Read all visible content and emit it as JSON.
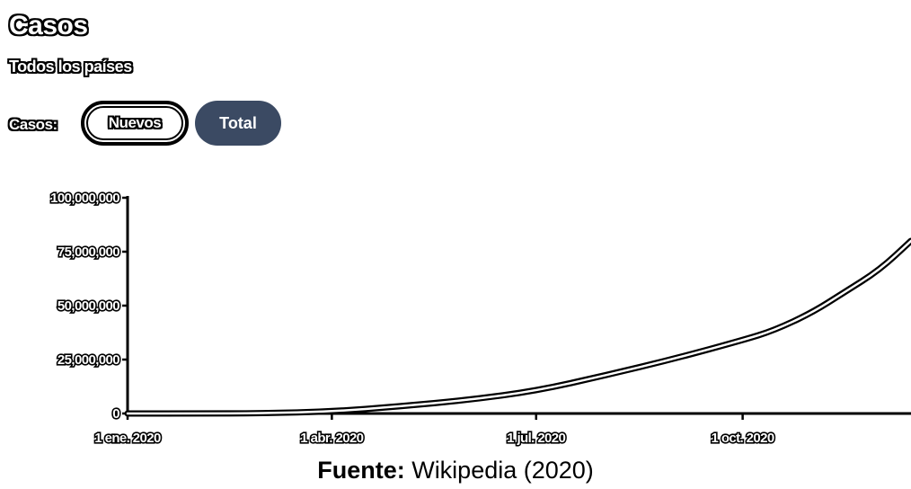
{
  "header": {
    "title": "Casos",
    "subtitle": "Todos los países",
    "mode_label": "Casos:",
    "buttons": {
      "new": "Nuevos",
      "total": "Total"
    }
  },
  "colors": {
    "active_button": "#3b4a63",
    "line": "#000000"
  },
  "chart_data": {
    "type": "line",
    "title": "Casos",
    "subtitle": "Todos los países",
    "xlabel": "",
    "ylabel": "",
    "xlim": [
      "2020-01-01",
      "2020-12-15"
    ],
    "ylim": [
      0,
      100000000
    ],
    "x_ticks": [
      {
        "date": "2020-01-01",
        "label": "1 ene. 2020"
      },
      {
        "date": "2020-04-01",
        "label": "1 abr. 2020"
      },
      {
        "date": "2020-07-01",
        "label": "1 jul. 2020"
      },
      {
        "date": "2020-10-01",
        "label": "1 oct. 2020"
      }
    ],
    "y_ticks": [
      {
        "value": 0,
        "label": "0"
      },
      {
        "value": 25000000,
        "label": "25,000,000"
      },
      {
        "value": 50000000,
        "label": "50,000,000"
      },
      {
        "value": 75000000,
        "label": "75,000,000"
      },
      {
        "value": 100000000,
        "label": "100,000,000"
      }
    ],
    "grid": false,
    "legend": "none",
    "series": [
      {
        "points": [
          [
            "2020-01-01",
            0
          ],
          [
            "2020-02-01",
            10000
          ],
          [
            "2020-03-01",
            90000
          ],
          [
            "2020-04-01",
            900000
          ],
          [
            "2020-05-01",
            3300000
          ],
          [
            "2020-06-01",
            6300000
          ],
          [
            "2020-07-01",
            10500000
          ],
          [
            "2020-08-01",
            17700000
          ],
          [
            "2020-09-01",
            25500000
          ],
          [
            "2020-10-01",
            34000000
          ],
          [
            "2020-10-15",
            38500000
          ],
          [
            "2020-11-01",
            46800000
          ],
          [
            "2020-11-15",
            56000000
          ],
          [
            "2020-12-01",
            66500000
          ],
          [
            "2020-12-15",
            80000000
          ]
        ]
      }
    ]
  },
  "footer": {
    "source_bold": "Fuente:",
    "source_text": " Wikipedia (2020)"
  }
}
